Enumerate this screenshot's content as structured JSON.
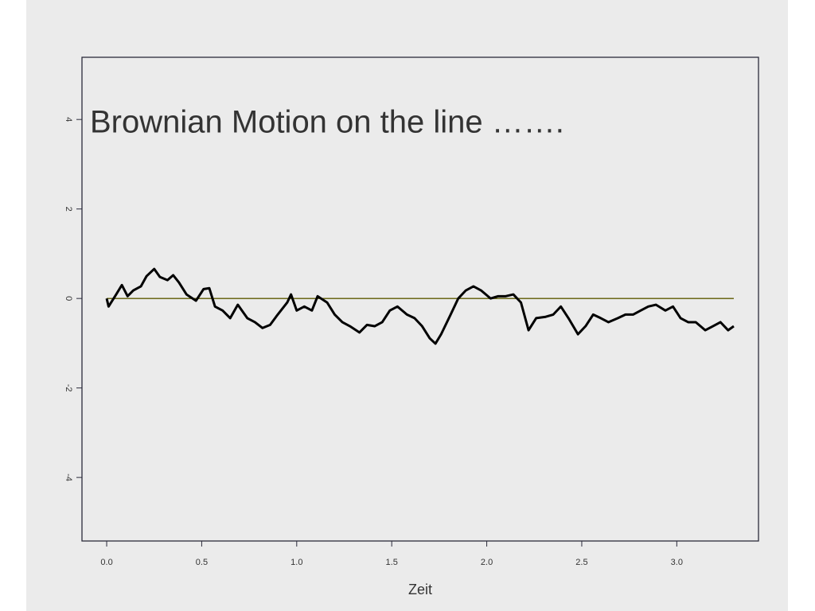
{
  "chart_data": {
    "type": "line",
    "title": "Brownian Motion on the line …….",
    "title_color": "#e8140e",
    "x_label": "Zeit",
    "x": [
      0,
      0.01,
      0.05,
      0.08,
      0.11,
      0.14,
      0.18,
      0.21,
      0.25,
      0.28,
      0.32,
      0.35,
      0.38,
      0.42,
      0.47,
      0.51,
      0.54,
      0.57,
      0.61,
      0.65,
      0.69,
      0.74,
      0.78,
      0.82,
      0.86,
      0.9,
      0.95,
      0.97,
      1.0,
      1.04,
      1.08,
      1.11,
      1.16,
      1.2,
      1.24,
      1.28,
      1.33,
      1.37,
      1.41,
      1.45,
      1.49,
      1.53,
      1.58,
      1.62,
      1.66,
      1.7,
      1.73,
      1.76,
      1.81,
      1.85,
      1.89,
      1.93,
      1.97,
      2.02,
      2.06,
      2.1,
      2.14,
      2.18,
      2.22,
      2.26,
      2.31,
      2.35,
      2.39,
      2.43,
      2.48,
      2.52,
      2.56,
      2.6,
      2.64,
      2.69,
      2.73,
      2.77,
      2.81,
      2.85,
      2.89,
      2.94,
      2.98,
      3.02,
      3.06,
      3.1,
      3.15,
      3.19,
      3.23,
      3.27,
      3.3
    ],
    "series": [
      {
        "color": "#000000",
        "values": [
          0,
          -0.18,
          0.09,
          0.3,
          0.05,
          0.18,
          0.27,
          0.5,
          0.66,
          0.48,
          0.41,
          0.52,
          0.36,
          0.09,
          -0.05,
          0.21,
          0.23,
          -0.18,
          -0.27,
          -0.44,
          -0.14,
          -0.44,
          -0.53,
          -0.66,
          -0.59,
          -0.36,
          -0.09,
          0.09,
          -0.27,
          -0.18,
          -0.27,
          0.05,
          -0.09,
          -0.36,
          -0.53,
          -0.62,
          -0.76,
          -0.59,
          -0.62,
          -0.53,
          -0.27,
          -0.18,
          -0.36,
          -0.44,
          -0.62,
          -0.89,
          -1.01,
          -0.8,
          -0.36,
          0,
          0.18,
          0.27,
          0.18,
          0,
          0.05,
          0.05,
          0.09,
          -0.09,
          -0.71,
          -0.44,
          -0.41,
          -0.36,
          -0.18,
          -0.44,
          -0.8,
          -0.62,
          -0.36,
          -0.44,
          -0.53,
          -0.44,
          -0.36,
          -0.36,
          -0.27,
          -0.18,
          -0.14,
          -0.27,
          -0.18,
          -0.44,
          -0.53,
          -0.53,
          -0.71,
          -0.62,
          -0.53,
          -0.71,
          -0.62
        ]
      }
    ],
    "hline": {
      "y": 0,
      "color": "#5c5a00"
    },
    "xlim": [
      -0.13,
      3.43
    ],
    "ylim": [
      -5.42,
      5.39
    ],
    "xticks": [
      {
        "value": 0,
        "label": "0.0"
      },
      0.5,
      {
        "value": 1,
        "label": "1.0"
      },
      1.5,
      {
        "value": 2,
        "label": "2.0"
      },
      2.5,
      {
        "value": 3,
        "label": "3.0"
      }
    ],
    "yticks": [
      -4,
      -2,
      0,
      2,
      4
    ]
  }
}
